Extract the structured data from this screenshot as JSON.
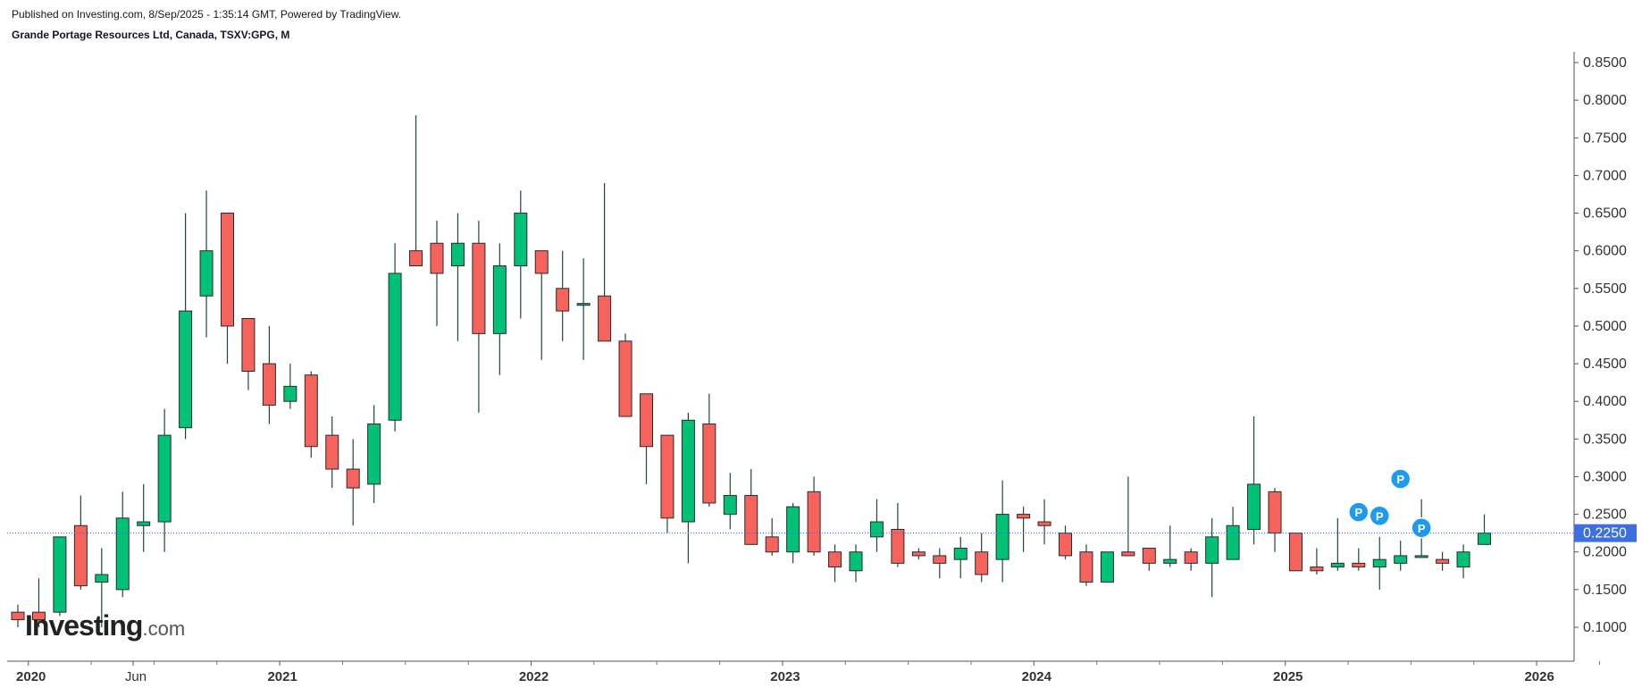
{
  "header": {
    "published": "Published on Investing.com, 8/Sep/2025 - 1:35:14 GMT, Powered by TradingView.",
    "title": "Grande Portage Resources Ltd, Canada, TSXV:GPG, M"
  },
  "logo": {
    "brand": "Investing",
    "suffix": ".com"
  },
  "colors": {
    "up": "#00c176",
    "down": "#f6635d",
    "wick": "#1e4a30",
    "price_line": "#2962ff",
    "price_badge": "#3d6fe0",
    "marker": "#1e9bf0"
  },
  "chart_data": {
    "type": "candlestick",
    "interval": "monthly",
    "y_axis": {
      "position": "right",
      "ylim": [
        0.045,
        0.86
      ],
      "ticks": [
        0.85,
        0.8,
        0.75,
        0.7,
        0.65,
        0.6,
        0.55,
        0.5,
        0.45,
        0.4,
        0.35,
        0.3,
        0.25,
        0.2,
        0.15,
        0.1
      ],
      "tick_labels": [
        "0.8500",
        "0.8000",
        "0.7500",
        "0.7000",
        "0.6500",
        "0.6000",
        "0.5500",
        "0.5000",
        "0.4500",
        "0.4000",
        "0.3500",
        "0.3000",
        "0.2500",
        "0.2000",
        "0.1500",
        "0.1000"
      ]
    },
    "x_axis": {
      "start": "2019-12",
      "labels": [
        {
          "text": "2020",
          "month": "2020-01",
          "bold": true
        },
        {
          "text": "Jun",
          "month": "2020-06",
          "bold": false
        },
        {
          "text": "2021",
          "month": "2021-01",
          "bold": true
        },
        {
          "text": "2022",
          "month": "2022-01",
          "bold": true
        },
        {
          "text": "2023",
          "month": "2023-01",
          "bold": true
        },
        {
          "text": "2024",
          "month": "2024-01",
          "bold": true
        },
        {
          "text": "2025",
          "month": "2025-01",
          "bold": true
        },
        {
          "text": "2026",
          "month": "2026-01",
          "bold": true
        }
      ]
    },
    "current_price": {
      "value": 0.225,
      "label": "0.2250"
    },
    "dividend_markers": [
      {
        "month": "2025-04",
        "price": 0.253,
        "label": "P"
      },
      {
        "month": "2025-05",
        "price": 0.248,
        "label": "P"
      },
      {
        "month": "2025-06",
        "price": 0.297,
        "label": "P"
      },
      {
        "month": "2025-07",
        "price": 0.232,
        "label": "P"
      }
    ],
    "candles": [
      {
        "t": "2019-12",
        "o": 0.12,
        "h": 0.13,
        "l": 0.1,
        "c": 0.11
      },
      {
        "t": "2020-01",
        "o": 0.12,
        "h": 0.165,
        "l": 0.1,
        "c": 0.11
      },
      {
        "t": "2020-02",
        "o": 0.12,
        "h": 0.22,
        "l": 0.115,
        "c": 0.22
      },
      {
        "t": "2020-03",
        "o": 0.235,
        "h": 0.275,
        "l": 0.15,
        "c": 0.155
      },
      {
        "t": "2020-04",
        "o": 0.16,
        "h": 0.205,
        "l": 0.1,
        "c": 0.17
      },
      {
        "t": "2020-05",
        "o": 0.15,
        "h": 0.28,
        "l": 0.14,
        "c": 0.245
      },
      {
        "t": "2020-06",
        "o": 0.235,
        "h": 0.29,
        "l": 0.2,
        "c": 0.24
      },
      {
        "t": "2020-07",
        "o": 0.24,
        "h": 0.39,
        "l": 0.2,
        "c": 0.355
      },
      {
        "t": "2020-08",
        "o": 0.365,
        "h": 0.65,
        "l": 0.35,
        "c": 0.52
      },
      {
        "t": "2020-09",
        "o": 0.54,
        "h": 0.68,
        "l": 0.485,
        "c": 0.6
      },
      {
        "t": "2020-10",
        "o": 0.65,
        "h": 0.65,
        "l": 0.45,
        "c": 0.5
      },
      {
        "t": "2020-11",
        "o": 0.51,
        "h": 0.51,
        "l": 0.415,
        "c": 0.44
      },
      {
        "t": "2020-12",
        "o": 0.45,
        "h": 0.5,
        "l": 0.37,
        "c": 0.395
      },
      {
        "t": "2021-01",
        "o": 0.4,
        "h": 0.45,
        "l": 0.39,
        "c": 0.42
      },
      {
        "t": "2021-02",
        "o": 0.435,
        "h": 0.44,
        "l": 0.325,
        "c": 0.34
      },
      {
        "t": "2021-03",
        "o": 0.355,
        "h": 0.38,
        "l": 0.285,
        "c": 0.31
      },
      {
        "t": "2021-04",
        "o": 0.31,
        "h": 0.35,
        "l": 0.235,
        "c": 0.285
      },
      {
        "t": "2021-05",
        "o": 0.29,
        "h": 0.395,
        "l": 0.265,
        "c": 0.37
      },
      {
        "t": "2021-06",
        "o": 0.375,
        "h": 0.61,
        "l": 0.36,
        "c": 0.57
      },
      {
        "t": "2021-07",
        "o": 0.6,
        "h": 0.78,
        "l": 0.58,
        "c": 0.58
      },
      {
        "t": "2021-08",
        "o": 0.61,
        "h": 0.64,
        "l": 0.5,
        "c": 0.57
      },
      {
        "t": "2021-09",
        "o": 0.58,
        "h": 0.65,
        "l": 0.48,
        "c": 0.61
      },
      {
        "t": "2021-10",
        "o": 0.61,
        "h": 0.64,
        "l": 0.385,
        "c": 0.49
      },
      {
        "t": "2021-11",
        "o": 0.49,
        "h": 0.61,
        "l": 0.435,
        "c": 0.58
      },
      {
        "t": "2021-12",
        "o": 0.58,
        "h": 0.68,
        "l": 0.51,
        "c": 0.65
      },
      {
        "t": "2022-01",
        "o": 0.6,
        "h": 0.6,
        "l": 0.455,
        "c": 0.57
      },
      {
        "t": "2022-02",
        "o": 0.55,
        "h": 0.6,
        "l": 0.48,
        "c": 0.52
      },
      {
        "t": "2022-03",
        "o": 0.53,
        "h": 0.59,
        "l": 0.455,
        "c": 0.53
      },
      {
        "t": "2022-04",
        "o": 0.54,
        "h": 0.69,
        "l": 0.48,
        "c": 0.48
      },
      {
        "t": "2022-05",
        "o": 0.48,
        "h": 0.49,
        "l": 0.38,
        "c": 0.38
      },
      {
        "t": "2022-06",
        "o": 0.41,
        "h": 0.41,
        "l": 0.29,
        "c": 0.34
      },
      {
        "t": "2022-07",
        "o": 0.355,
        "h": 0.355,
        "l": 0.225,
        "c": 0.245
      },
      {
        "t": "2022-08",
        "o": 0.24,
        "h": 0.385,
        "l": 0.185,
        "c": 0.375
      },
      {
        "t": "2022-09",
        "o": 0.37,
        "h": 0.41,
        "l": 0.26,
        "c": 0.265
      },
      {
        "t": "2022-10",
        "o": 0.25,
        "h": 0.305,
        "l": 0.23,
        "c": 0.275
      },
      {
        "t": "2022-11",
        "o": 0.275,
        "h": 0.31,
        "l": 0.21,
        "c": 0.21
      },
      {
        "t": "2022-12",
        "o": 0.22,
        "h": 0.245,
        "l": 0.195,
        "c": 0.2
      },
      {
        "t": "2023-01",
        "o": 0.2,
        "h": 0.265,
        "l": 0.185,
        "c": 0.26
      },
      {
        "t": "2023-02",
        "o": 0.28,
        "h": 0.3,
        "l": 0.195,
        "c": 0.2
      },
      {
        "t": "2023-03",
        "o": 0.2,
        "h": 0.21,
        "l": 0.16,
        "c": 0.18
      },
      {
        "t": "2023-04",
        "o": 0.175,
        "h": 0.21,
        "l": 0.16,
        "c": 0.2
      },
      {
        "t": "2023-05",
        "o": 0.22,
        "h": 0.27,
        "l": 0.2,
        "c": 0.24
      },
      {
        "t": "2023-06",
        "o": 0.23,
        "h": 0.265,
        "l": 0.18,
        "c": 0.185
      },
      {
        "t": "2023-07",
        "o": 0.2,
        "h": 0.205,
        "l": 0.19,
        "c": 0.195
      },
      {
        "t": "2023-08",
        "o": 0.195,
        "h": 0.205,
        "l": 0.165,
        "c": 0.185
      },
      {
        "t": "2023-09",
        "o": 0.19,
        "h": 0.22,
        "l": 0.165,
        "c": 0.205
      },
      {
        "t": "2023-10",
        "o": 0.2,
        "h": 0.225,
        "l": 0.16,
        "c": 0.17
      },
      {
        "t": "2023-11",
        "o": 0.19,
        "h": 0.295,
        "l": 0.16,
        "c": 0.25
      },
      {
        "t": "2023-12",
        "o": 0.25,
        "h": 0.26,
        "l": 0.2,
        "c": 0.245
      },
      {
        "t": "2024-01",
        "o": 0.24,
        "h": 0.27,
        "l": 0.21,
        "c": 0.235
      },
      {
        "t": "2024-02",
        "o": 0.225,
        "h": 0.235,
        "l": 0.19,
        "c": 0.195
      },
      {
        "t": "2024-03",
        "o": 0.2,
        "h": 0.21,
        "l": 0.155,
        "c": 0.16
      },
      {
        "t": "2024-04",
        "o": 0.16,
        "h": 0.2,
        "l": 0.16,
        "c": 0.2
      },
      {
        "t": "2024-05",
        "o": 0.2,
        "h": 0.3,
        "l": 0.195,
        "c": 0.195
      },
      {
        "t": "2024-06",
        "o": 0.205,
        "h": 0.205,
        "l": 0.175,
        "c": 0.185
      },
      {
        "t": "2024-07",
        "o": 0.185,
        "h": 0.235,
        "l": 0.18,
        "c": 0.19
      },
      {
        "t": "2024-08",
        "o": 0.2,
        "h": 0.205,
        "l": 0.175,
        "c": 0.185
      },
      {
        "t": "2024-09",
        "o": 0.185,
        "h": 0.245,
        "l": 0.14,
        "c": 0.22
      },
      {
        "t": "2024-10",
        "o": 0.19,
        "h": 0.26,
        "l": 0.19,
        "c": 0.235
      },
      {
        "t": "2024-11",
        "o": 0.23,
        "h": 0.38,
        "l": 0.21,
        "c": 0.29
      },
      {
        "t": "2024-12",
        "o": 0.28,
        "h": 0.285,
        "l": 0.2,
        "c": 0.225
      },
      {
        "t": "2025-01",
        "o": 0.225,
        "h": 0.225,
        "l": 0.175,
        "c": 0.175
      },
      {
        "t": "2025-02",
        "o": 0.18,
        "h": 0.205,
        "l": 0.17,
        "c": 0.175
      },
      {
        "t": "2025-03",
        "o": 0.18,
        "h": 0.245,
        "l": 0.175,
        "c": 0.185
      },
      {
        "t": "2025-04",
        "o": 0.185,
        "h": 0.205,
        "l": 0.175,
        "c": 0.18
      },
      {
        "t": "2025-05",
        "o": 0.18,
        "h": 0.22,
        "l": 0.15,
        "c": 0.19
      },
      {
        "t": "2025-06",
        "o": 0.185,
        "h": 0.215,
        "l": 0.175,
        "c": 0.195
      },
      {
        "t": "2025-07",
        "o": 0.195,
        "h": 0.27,
        "l": 0.195,
        "c": 0.195
      },
      {
        "t": "2025-08",
        "o": 0.19,
        "h": 0.2,
        "l": 0.175,
        "c": 0.185
      },
      {
        "t": "2025-09",
        "o": 0.18,
        "h": 0.21,
        "l": 0.165,
        "c": 0.2
      },
      {
        "t": "2025-10",
        "o": 0.21,
        "h": 0.25,
        "l": 0.21,
        "c": 0.225
      }
    ]
  }
}
